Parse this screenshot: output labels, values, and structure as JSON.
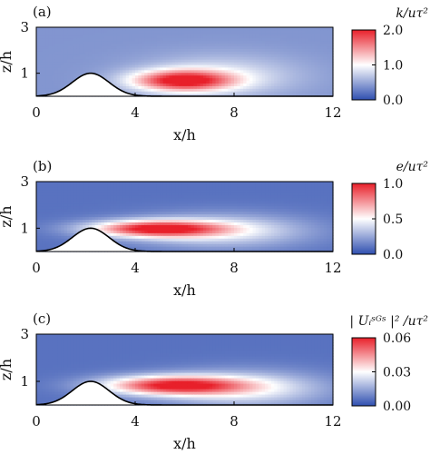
{
  "chart_data": [
    {
      "type": "heatmap",
      "panel_label": "(a)",
      "quantity_label": "k/uτ²",
      "xlabel": "x/h",
      "ylabel": "z/h",
      "xlim": [
        0,
        12
      ],
      "ylim": [
        0,
        3
      ],
      "xticks": [
        "0",
        "4",
        "8",
        "12"
      ],
      "yticks": [
        "1",
        "3"
      ],
      "colorbar": {
        "range": [
          0.0,
          2.0
        ],
        "ticks": [
          "0.0",
          "1.0",
          "2.0"
        ],
        "colors": [
          "#2f4fb0",
          "#ffffff",
          "#e8202a"
        ]
      },
      "hot_spot": {
        "x_center": 5.9,
        "z_center": 0.7,
        "peak_value": 1.9
      },
      "hill": {
        "crest_x": 2.2,
        "height": 1.0
      }
    },
    {
      "type": "heatmap",
      "panel_label": "(b)",
      "quantity_label": "e/uτ²",
      "xlabel": "x/h",
      "ylabel": "z/h",
      "xlim": [
        0,
        12
      ],
      "ylim": [
        0,
        3
      ],
      "xticks": [
        "0",
        "4",
        "8",
        "12"
      ],
      "yticks": [
        "1",
        "3"
      ],
      "colorbar": {
        "range": [
          0.0,
          1.0
        ],
        "ticks": [
          "0.0",
          "0.5",
          "1.0"
        ],
        "colors": [
          "#2f4fb0",
          "#ffffff",
          "#e8202a"
        ]
      },
      "hot_spot": {
        "x_center": 4.8,
        "z_center": 1.0,
        "peak_value": 0.95
      },
      "hill": {
        "crest_x": 2.2,
        "height": 1.0
      }
    },
    {
      "type": "heatmap",
      "panel_label": "(c)",
      "quantity_label": "| Uᵢˢᴳˢ |² /uτ²",
      "xlabel": "x/h",
      "ylabel": "z/h",
      "xlim": [
        0,
        12
      ],
      "ylim": [
        0,
        3
      ],
      "xticks": [
        "0",
        "4",
        "8",
        "12"
      ],
      "yticks": [
        "1",
        "3"
      ],
      "colorbar": {
        "range": [
          0.0,
          0.06
        ],
        "ticks": [
          "0.00",
          "0.03",
          "0.06"
        ],
        "colors": [
          "#2f4fb0",
          "#ffffff",
          "#e8202a"
        ]
      },
      "hot_spot": {
        "x_center": 5.5,
        "z_center": 0.85,
        "peak_value": 0.058
      },
      "hill": {
        "crest_x": 2.2,
        "height": 1.0
      }
    }
  ]
}
